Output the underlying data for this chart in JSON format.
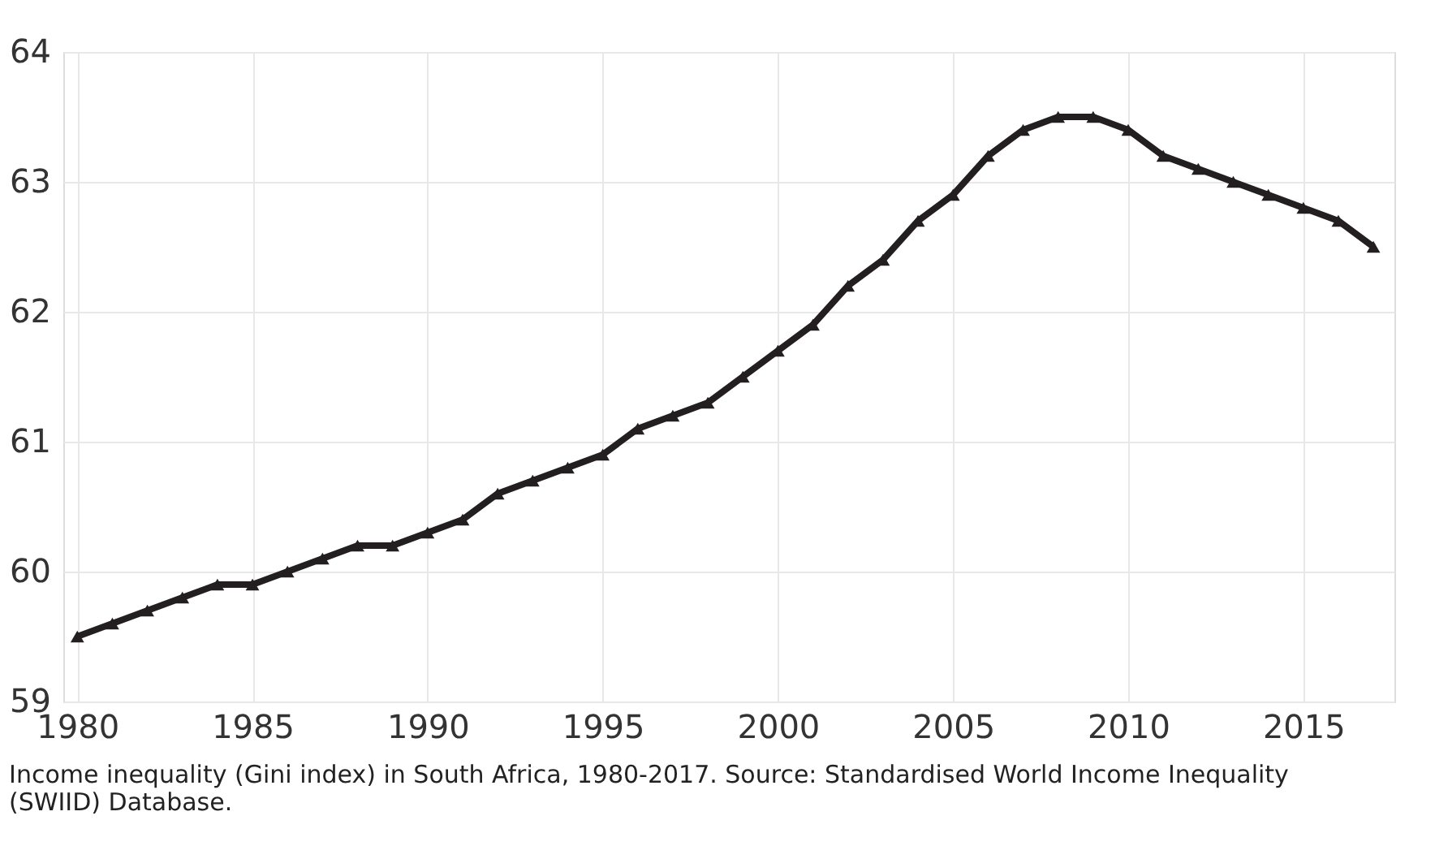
{
  "chart_data": {
    "type": "line",
    "x": [
      1980,
      1981,
      1982,
      1983,
      1984,
      1985,
      1986,
      1987,
      1988,
      1989,
      1990,
      1991,
      1992,
      1993,
      1994,
      1995,
      1996,
      1997,
      1998,
      1999,
      2000,
      2001,
      2002,
      2003,
      2004,
      2005,
      2006,
      2007,
      2008,
      2009,
      2010,
      2011,
      2012,
      2013,
      2014,
      2015,
      2016,
      2017
    ],
    "series": [
      {
        "color": "#231f20",
        "values": [
          59.5,
          59.6,
          59.7,
          59.8,
          59.9,
          59.9,
          60.0,
          60.1,
          60.2,
          60.2,
          60.3,
          60.4,
          60.6,
          60.7,
          60.8,
          60.9,
          61.1,
          61.2,
          61.3,
          61.5,
          61.7,
          61.9,
          62.2,
          62.4,
          62.7,
          62.9,
          63.2,
          63.4,
          63.5,
          63.5,
          63.4,
          63.2,
          63.1,
          63.0,
          62.9,
          62.8,
          62.7,
          62.5
        ]
      }
    ],
    "xlim": [
      1979.6,
      2017.6
    ],
    "xticks": [
      1980,
      1985,
      1990,
      1995,
      2000,
      2005,
      2010,
      2015
    ],
    "ylim": [
      59,
      64
    ],
    "yticks": [
      59,
      60,
      61,
      62,
      63,
      64
    ],
    "grid": true,
    "marker": "triangle",
    "line_style": "solid",
    "annotations": [
      "Income inequality (Gini index) in South Africa, 1980-2017. Source: Standardised World Income Inequality (SWIID) Database."
    ]
  }
}
